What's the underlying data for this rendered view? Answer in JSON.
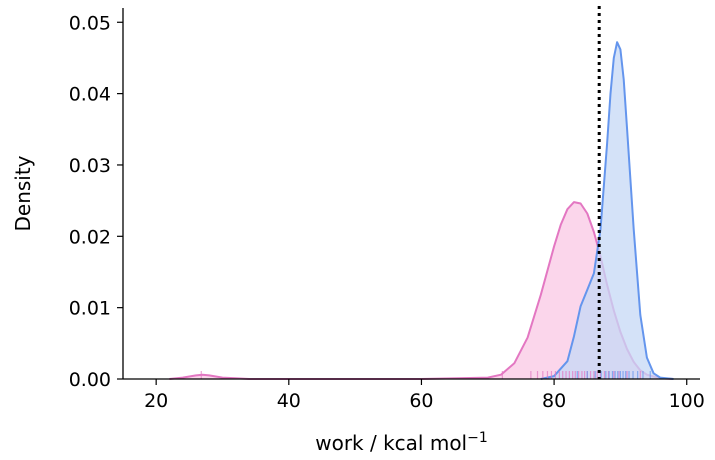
{
  "chart_data": {
    "type": "area",
    "xlabel": "work / kcal mol",
    "xlabel_superscript": "−1",
    "ylabel": "Density",
    "xlim": [
      15,
      102
    ],
    "ylim": [
      0,
      0.052
    ],
    "xticks": [
      20,
      40,
      60,
      80,
      100
    ],
    "xtick_labels": [
      "20",
      "40",
      "60",
      "80",
      "100"
    ],
    "yticks": [
      0.0,
      0.01,
      0.02,
      0.03,
      0.04,
      0.05
    ],
    "ytick_labels": [
      "0.00",
      "0.01",
      "0.02",
      "0.03",
      "0.04",
      "0.05"
    ],
    "grid": false,
    "reference_line": {
      "x": 86.8,
      "style": "dotted",
      "color": "#000000"
    },
    "series": [
      {
        "color": "#e377c2",
        "fill": "#f9c8e4",
        "x": [
          22,
          24,
          26,
          27,
          28,
          30,
          32,
          34,
          60,
          70,
          72,
          74,
          76,
          78,
          80,
          81,
          82,
          83,
          84,
          85,
          86,
          87,
          88,
          89,
          90,
          91,
          92,
          93,
          94,
          96,
          98
        ],
        "y": [
          0.0,
          0.0002,
          0.0005,
          0.0006,
          0.0005,
          0.0002,
          0.0001,
          0.0,
          0.0,
          0.0002,
          0.0006,
          0.0022,
          0.0058,
          0.0118,
          0.0186,
          0.0216,
          0.0238,
          0.0248,
          0.0246,
          0.0232,
          0.0206,
          0.0172,
          0.0132,
          0.0096,
          0.0066,
          0.0042,
          0.0024,
          0.0012,
          0.0006,
          0.0001,
          0.0
        ],
        "rug": [
          26.8,
          72.2,
          76.5,
          77.5,
          78.3,
          79.0,
          79.6,
          80.2,
          80.8,
          81.3,
          81.8,
          82.3,
          82.8,
          83.2,
          83.7,
          84.2,
          84.6,
          85.0,
          85.5,
          86.0,
          86.5,
          87.0,
          87.6,
          88.2,
          89.0,
          89.8,
          91.0,
          93.0
        ]
      },
      {
        "color": "#6495ed",
        "fill": "#c6d8f5",
        "x": [
          78,
          80,
          82,
          83,
          84,
          85,
          86,
          87,
          88,
          88.5,
          89,
          89.5,
          90,
          90.5,
          91,
          92,
          93,
          94,
          95,
          96,
          98
        ],
        "y": [
          0.0,
          0.0004,
          0.0025,
          0.006,
          0.0102,
          0.0125,
          0.0148,
          0.021,
          0.033,
          0.04,
          0.045,
          0.0472,
          0.0462,
          0.042,
          0.0352,
          0.021,
          0.009,
          0.003,
          0.0008,
          0.0002,
          0.0
        ],
        "rug": [
          83.5,
          85.0,
          86.2,
          87.1,
          87.8,
          88.3,
          88.8,
          89.2,
          89.6,
          90.0,
          90.4,
          90.8,
          91.3,
          91.9,
          92.6,
          93.4,
          94.5
        ]
      }
    ]
  }
}
